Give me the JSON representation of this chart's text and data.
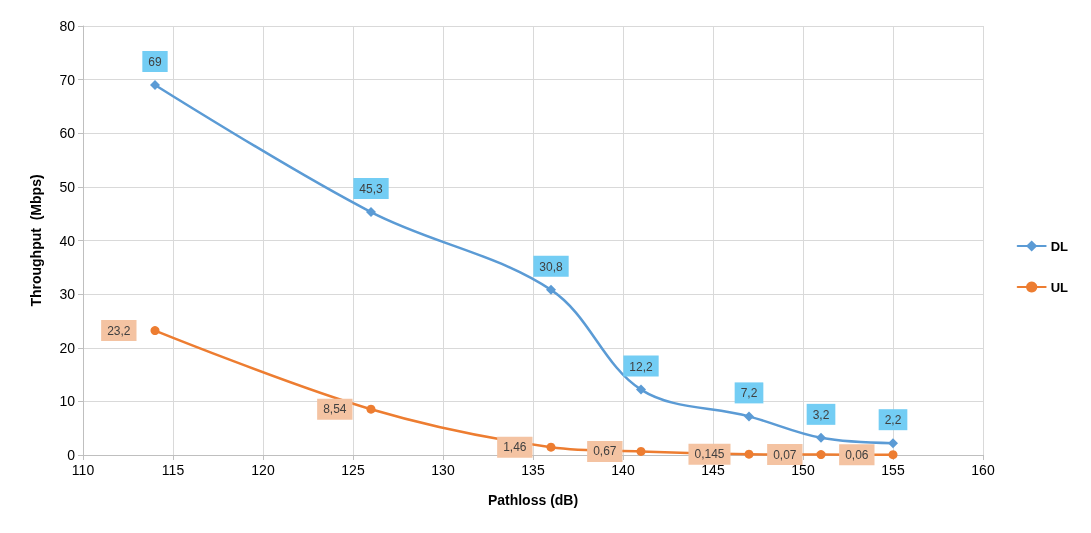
{
  "chart_data": {
    "type": "line",
    "xlabel": "Pathloss (dB)",
    "ylabel": "Throughput  (Mbps)",
    "x": [
      114,
      126,
      136,
      141,
      147,
      151,
      155
    ],
    "series": [
      {
        "name": "DL",
        "color": "#5b9bd5",
        "marker": "diamond",
        "values": [
          69,
          45.3,
          30.8,
          12.2,
          7.2,
          3.2,
          2.2
        ],
        "value_labels": [
          "69",
          "45,3",
          "30,8",
          "12,2",
          "7,2",
          "3,2",
          "2,2"
        ]
      },
      {
        "name": "UL",
        "color": "#ed7d31",
        "marker": "circle",
        "values": [
          23.2,
          8.54,
          1.46,
          0.67,
          0.145,
          0.07,
          0.06
        ],
        "value_labels": [
          "23,2",
          "8,54",
          "1,46",
          "0,67",
          "0,145",
          "0,07",
          "0,06"
        ]
      }
    ],
    "xlim": [
      110,
      160
    ],
    "xticks": [
      110,
      115,
      120,
      125,
      130,
      135,
      140,
      145,
      150,
      155,
      160
    ],
    "ylim": [
      0,
      80
    ],
    "yticks": [
      0,
      10,
      20,
      30,
      40,
      50,
      60,
      70,
      80
    ],
    "grid": true,
    "legend": "right"
  }
}
